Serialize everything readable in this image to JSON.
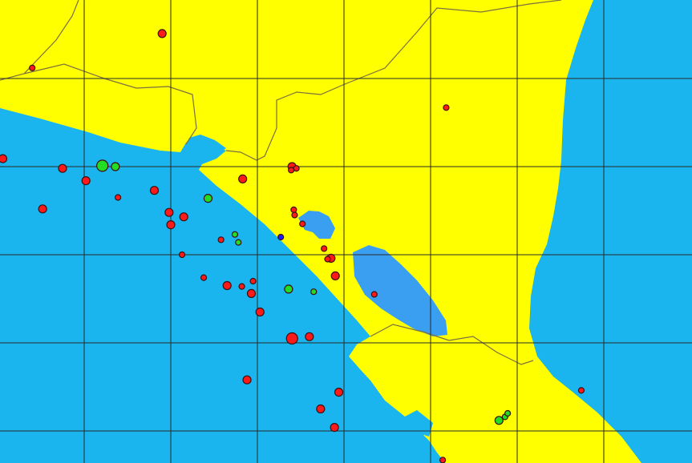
{
  "map": {
    "colors": {
      "land": "#ffff00",
      "ocean": "#1ab4ee",
      "lake": "#3a9ff0",
      "grid": "#2a2a2a",
      "border": "#7a7040"
    },
    "grid": {
      "lon": [
        -89,
        -88,
        -87,
        -86,
        -85,
        -84,
        -83
      ],
      "lat": [
        14,
        13,
        12,
        11,
        10
      ]
    },
    "marker_colors": {
      "red": "#ff1a1a",
      "green": "#22dd22",
      "blue": "#1a1aff"
    },
    "events": [
      {
        "lon": -88.1,
        "lat": 14.51,
        "color": "red",
        "size": 2
      },
      {
        "lon": -89.6,
        "lat": 14.12,
        "color": "red",
        "size": 1
      },
      {
        "lon": -84.82,
        "lat": 13.67,
        "color": "red",
        "size": 1
      },
      {
        "lon": -89.94,
        "lat": 13.09,
        "color": "red",
        "size": 2
      },
      {
        "lon": -89.25,
        "lat": 12.98,
        "color": "red",
        "size": 2
      },
      {
        "lon": -88.79,
        "lat": 13.01,
        "color": "green",
        "size": 3
      },
      {
        "lon": -88.64,
        "lat": 13.0,
        "color": "green",
        "size": 2
      },
      {
        "lon": -88.98,
        "lat": 12.84,
        "color": "red",
        "size": 2
      },
      {
        "lon": -88.61,
        "lat": 12.65,
        "color": "red",
        "size": 1
      },
      {
        "lon": -89.48,
        "lat": 12.52,
        "color": "red",
        "size": 2
      },
      {
        "lon": -88.19,
        "lat": 12.73,
        "color": "red",
        "size": 2
      },
      {
        "lon": -87.57,
        "lat": 12.64,
        "color": "green",
        "size": 2
      },
      {
        "lon": -87.17,
        "lat": 12.86,
        "color": "red",
        "size": 2
      },
      {
        "lon": -86.6,
        "lat": 13.0,
        "color": "red",
        "size": 2
      },
      {
        "lon": -86.55,
        "lat": 12.98,
        "color": "red",
        "size": 1
      },
      {
        "lon": -86.61,
        "lat": 12.96,
        "color": "red",
        "size": 1
      },
      {
        "lon": -88.02,
        "lat": 12.48,
        "color": "red",
        "size": 2
      },
      {
        "lon": -87.85,
        "lat": 12.43,
        "color": "red",
        "size": 2
      },
      {
        "lon": -88.0,
        "lat": 12.34,
        "color": "red",
        "size": 2
      },
      {
        "lon": -86.58,
        "lat": 12.51,
        "color": "red",
        "size": 1
      },
      {
        "lon": -86.57,
        "lat": 12.45,
        "color": "red",
        "size": 1
      },
      {
        "lon": -86.48,
        "lat": 12.35,
        "color": "red",
        "size": 1
      },
      {
        "lon": -87.42,
        "lat": 12.17,
        "color": "red",
        "size": 1
      },
      {
        "lon": -87.26,
        "lat": 12.23,
        "color": "green",
        "size": 1
      },
      {
        "lon": -87.22,
        "lat": 12.14,
        "color": "green",
        "size": 1
      },
      {
        "lon": -86.73,
        "lat": 12.2,
        "color": "blue",
        "size": 1
      },
      {
        "lon": -86.23,
        "lat": 12.07,
        "color": "red",
        "size": 1
      },
      {
        "lon": -86.15,
        "lat": 11.96,
        "color": "red",
        "size": 2
      },
      {
        "lon": -86.19,
        "lat": 11.95,
        "color": "red",
        "size": 1
      },
      {
        "lon": -87.87,
        "lat": 12.0,
        "color": "red",
        "size": 1
      },
      {
        "lon": -86.1,
        "lat": 11.76,
        "color": "red",
        "size": 2
      },
      {
        "lon": -87.62,
        "lat": 11.74,
        "color": "red",
        "size": 1
      },
      {
        "lon": -87.35,
        "lat": 11.65,
        "color": "red",
        "size": 2
      },
      {
        "lon": -87.18,
        "lat": 11.64,
        "color": "red",
        "size": 1
      },
      {
        "lon": -87.05,
        "lat": 11.7,
        "color": "red",
        "size": 1
      },
      {
        "lon": -87.07,
        "lat": 11.56,
        "color": "red",
        "size": 2
      },
      {
        "lon": -86.64,
        "lat": 11.61,
        "color": "green",
        "size": 2
      },
      {
        "lon": -86.35,
        "lat": 11.58,
        "color": "green",
        "size": 1
      },
      {
        "lon": -85.65,
        "lat": 11.55,
        "color": "red",
        "size": 1
      },
      {
        "lon": -86.97,
        "lat": 11.35,
        "color": "red",
        "size": 2
      },
      {
        "lon": -86.6,
        "lat": 11.05,
        "color": "red",
        "size": 3
      },
      {
        "lon": -86.4,
        "lat": 11.07,
        "color": "red",
        "size": 2
      },
      {
        "lon": -87.12,
        "lat": 10.58,
        "color": "red",
        "size": 2
      },
      {
        "lon": -86.06,
        "lat": 10.44,
        "color": "red",
        "size": 2
      },
      {
        "lon": -86.27,
        "lat": 10.25,
        "color": "red",
        "size": 2
      },
      {
        "lon": -86.11,
        "lat": 10.04,
        "color": "red",
        "size": 2
      },
      {
        "lon": -84.86,
        "lat": 9.67,
        "color": "red",
        "size": 1
      },
      {
        "lon": -84.21,
        "lat": 10.12,
        "color": "green",
        "size": 2
      },
      {
        "lon": -84.14,
        "lat": 10.16,
        "color": "green",
        "size": 1
      },
      {
        "lon": -84.11,
        "lat": 10.2,
        "color": "green",
        "size": 1
      },
      {
        "lon": -83.26,
        "lat": 10.46,
        "color": "red",
        "size": 1
      }
    ]
  }
}
